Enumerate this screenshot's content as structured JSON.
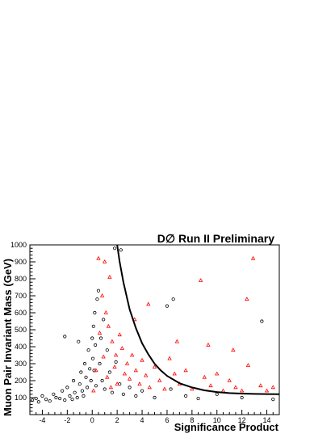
{
  "chart_data": {
    "type": "scatter",
    "title": "D∅ Run II Preliminary",
    "xlabel": "Significance Product",
    "ylabel": "Muon Pair Invariant Mass (GeV)",
    "xlim": [
      -5,
      15
    ],
    "ylim": [
      0,
      1000
    ],
    "x_ticks": [
      -4,
      -2,
      0,
      2,
      4,
      6,
      8,
      10,
      12,
      14
    ],
    "y_ticks": [
      100,
      200,
      300,
      400,
      500,
      600,
      700,
      800,
      900,
      1000
    ],
    "grid": false,
    "series_colors": {
      "circles": "#000000",
      "triangles": "#ff0000",
      "curve": "#000000"
    },
    "series": [
      {
        "marker": "circle",
        "color": "#000000",
        "points": [
          [
            -4.8,
            85
          ],
          [
            -4.5,
            95
          ],
          [
            -4.3,
            75
          ],
          [
            -4.0,
            110
          ],
          [
            -3.7,
            90
          ],
          [
            -3.4,
            80
          ],
          [
            -3.1,
            120
          ],
          [
            -2.9,
            100
          ],
          [
            -2.6,
            95
          ],
          [
            -2.4,
            140
          ],
          [
            -2.2,
            85
          ],
          [
            -2.0,
            160
          ],
          [
            -1.8,
            110
          ],
          [
            -1.6,
            90
          ],
          [
            -1.5,
            200
          ],
          [
            -1.4,
            130
          ],
          [
            -1.2,
            100
          ],
          [
            -1.0,
            180
          ],
          [
            -0.9,
            250
          ],
          [
            -0.8,
            140
          ],
          [
            -0.7,
            110
          ],
          [
            -0.6,
            300
          ],
          [
            -0.5,
            220
          ],
          [
            -0.4,
            160
          ],
          [
            -0.3,
            380
          ],
          [
            -0.2,
            270
          ],
          [
            -0.1,
            200
          ],
          [
            0.0,
            450
          ],
          [
            0.05,
            330
          ],
          [
            0.1,
            520
          ],
          [
            0.15,
            260
          ],
          [
            0.2,
            600
          ],
          [
            0.25,
            410
          ],
          [
            0.3,
            170
          ],
          [
            0.4,
            680
          ],
          [
            0.5,
            730
          ],
          [
            0.6,
            300
          ],
          [
            0.7,
            450
          ],
          [
            0.8,
            200
          ],
          [
            0.9,
            560
          ],
          [
            1.0,
            150
          ],
          [
            1.2,
            380
          ],
          [
            1.4,
            250
          ],
          [
            1.6,
            130
          ],
          [
            1.9,
            310
          ],
          [
            2.2,
            180
          ],
          [
            2.5,
            120
          ],
          [
            3.0,
            160
          ],
          [
            3.5,
            110
          ],
          [
            4.0,
            140
          ],
          [
            5.0,
            100
          ],
          [
            6.0,
            640
          ],
          [
            6.5,
            680
          ],
          [
            6.3,
            150
          ],
          [
            7.5,
            110
          ],
          [
            8.5,
            95
          ],
          [
            10.0,
            120
          ],
          [
            12.0,
            100
          ],
          [
            13.6,
            550
          ],
          [
            14.5,
            90
          ],
          [
            -2.2,
            460
          ],
          [
            -1.1,
            430
          ],
          [
            2.3,
            970
          ],
          [
            1.8,
            980
          ]
        ]
      },
      {
        "marker": "triangle",
        "color": "#ff0000",
        "points": [
          [
            0.1,
            140
          ],
          [
            0.3,
            260
          ],
          [
            0.5,
            920
          ],
          [
            0.6,
            480
          ],
          [
            0.8,
            700
          ],
          [
            0.9,
            340
          ],
          [
            1.0,
            900
          ],
          [
            1.1,
            600
          ],
          [
            1.2,
            220
          ],
          [
            1.3,
            520
          ],
          [
            1.4,
            810
          ],
          [
            1.5,
            160
          ],
          [
            1.6,
            430
          ],
          [
            1.8,
            280
          ],
          [
            1.9,
            350
          ],
          [
            2.0,
            180
          ],
          [
            2.2,
            470
          ],
          [
            2.4,
            390
          ],
          [
            2.6,
            240
          ],
          [
            2.8,
            300
          ],
          [
            3.0,
            210
          ],
          [
            3.2,
            350
          ],
          [
            3.5,
            260
          ],
          [
            3.8,
            180
          ],
          [
            4.0,
            320
          ],
          [
            4.3,
            230
          ],
          [
            4.6,
            160
          ],
          [
            5.0,
            280
          ],
          [
            5.4,
            200
          ],
          [
            5.8,
            150
          ],
          [
            6.2,
            330
          ],
          [
            6.6,
            240
          ],
          [
            7.0,
            180
          ],
          [
            7.5,
            260
          ],
          [
            8.0,
            150
          ],
          [
            8.7,
            790
          ],
          [
            9.0,
            220
          ],
          [
            9.5,
            170
          ],
          [
            10.0,
            240
          ],
          [
            10.5,
            140
          ],
          [
            11.0,
            200
          ],
          [
            11.5,
            160
          ],
          [
            12.0,
            140
          ],
          [
            12.4,
            680
          ],
          [
            12.5,
            290
          ],
          [
            12.9,
            920
          ],
          [
            13.5,
            170
          ],
          [
            14.0,
            140
          ],
          [
            14.5,
            160
          ],
          [
            4.5,
            650
          ],
          [
            6.8,
            430
          ],
          [
            9.3,
            410
          ],
          [
            11.3,
            380
          ],
          [
            3.4,
            560
          ]
        ]
      }
    ],
    "curve": {
      "color": "#000000",
      "points": [
        [
          2.0,
          1000
        ],
        [
          2.2,
          900
        ],
        [
          2.5,
          780
        ],
        [
          3.0,
          620
        ],
        [
          3.5,
          510
        ],
        [
          4.0,
          420
        ],
        [
          4.5,
          355
        ],
        [
          5.0,
          300
        ],
        [
          5.5,
          260
        ],
        [
          6.0,
          228
        ],
        [
          7.0,
          185
        ],
        [
          8.0,
          160
        ],
        [
          9.0,
          143
        ],
        [
          10.0,
          133
        ],
        [
          11.0,
          127
        ],
        [
          12.0,
          124
        ],
        [
          13.0,
          122
        ],
        [
          14.0,
          121
        ],
        [
          15.0,
          120
        ]
      ]
    }
  }
}
